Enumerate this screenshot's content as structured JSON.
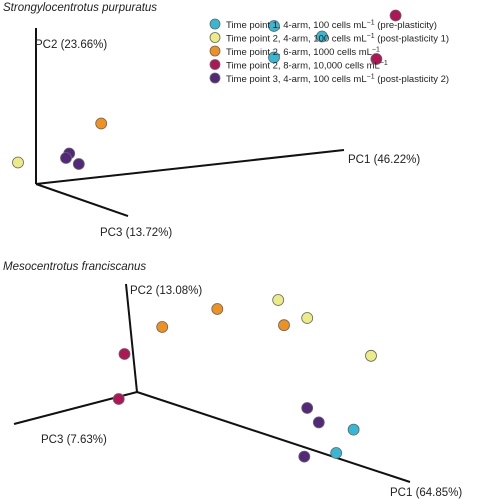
{
  "colors": {
    "tp1_4arm_100": "#35b8d4",
    "tp2_4arm_100": "#ecec86",
    "tp2_6arm_1000": "#f0901e",
    "tp2_8arm_10000": "#b01655",
    "tp3_4arm_100": "#53287a",
    "axis": "#111111",
    "marker_edge": "#666666"
  },
  "legend": {
    "placement": "top-right",
    "items": [
      {
        "key": "tp1_4arm_100",
        "text": "Time point 1, 4-arm, 100 cells mL",
        "sup": "−1",
        "suffix": " (pre-plasticity)"
      },
      {
        "key": "tp2_4arm_100",
        "text": "Time point 2, 4-arm, 100 cells mL",
        "sup": "−1",
        "suffix": " (post-plasticity 1)"
      },
      {
        "key": "tp2_6arm_1000",
        "text": "Time point 2, 6-arm, 1000 cells mL",
        "sup": "−1",
        "suffix": ""
      },
      {
        "key": "tp2_8arm_10000",
        "text": "Time point 2, 8-arm, 10,000 cells mL",
        "sup": "−1",
        "suffix": ""
      },
      {
        "key": "tp3_4arm_100",
        "text": "Time point 3, 4-arm, 100 cells mL",
        "sup": "−1",
        "suffix": " (post-plasticity 2)"
      }
    ]
  },
  "chart_data": [
    {
      "type": "scatter",
      "title": "Strongylocentrotus purpuratus",
      "axes": {
        "pc1": "PC1 (46.22%)",
        "pc2": "PC2 (23.66%)",
        "pc3": "PC3 (13.72%)"
      },
      "grid": false,
      "series": [
        {
          "key": "tp1_4arm_100",
          "points": [
            [
              0.7,
              1.0
            ],
            [
              0.85,
              0.93
            ],
            [
              0.7,
              0.79
            ]
          ]
        },
        {
          "key": "tp2_4arm_100",
          "points": [
            [
              -0.35,
              0.07
            ],
            [
              -0.24,
              0.09
            ],
            [
              -0.1,
              0.09
            ]
          ]
        },
        {
          "key": "tp2_6arm_1000",
          "points": [
            [
              0.16,
              0.35
            ],
            [
              -0.18,
              0.12
            ],
            [
              -0.22,
              0.04
            ]
          ]
        },
        {
          "key": "tp2_8arm_10000",
          "points": [
            [
              1.08,
              1.07
            ],
            [
              1.02,
              0.78
            ]
          ]
        },
        {
          "key": "tp3_4arm_100",
          "points": [
            [
              0.06,
              0.15
            ],
            [
              0.05,
              0.12
            ],
            [
              0.09,
              0.08
            ]
          ]
        }
      ]
    },
    {
      "type": "scatter",
      "title": "Mesocentrotus franciscanus",
      "axes": {
        "pc1": "PC1 (64.85%)",
        "pc2": "PC2 (13.08%)",
        "pc3": "PC3 (7.63%)"
      },
      "grid": false,
      "series": [
        {
          "key": "tp1_4arm_100",
          "points": [
            [
              0.84,
              0.28
            ],
            [
              0.78,
              0.15
            ]
          ]
        },
        {
          "key": "tp2_4arm_100",
          "points": [
            [
              0.58,
              1.0
            ],
            [
              0.68,
              0.9
            ],
            [
              0.9,
              0.69
            ]
          ]
        },
        {
          "key": "tp2_6arm_1000",
          "points": [
            [
              0.37,
              0.95
            ],
            [
              0.6,
              0.86
            ],
            [
              0.18,
              0.85
            ]
          ]
        },
        {
          "key": "tp2_8arm_10000",
          "points": [
            [
              0.05,
              0.7
            ],
            [
              0.03,
              0.45
            ]
          ]
        },
        {
          "key": "tp3_4arm_100",
          "points": [
            [
              0.68,
              0.4
            ],
            [
              0.72,
              0.32
            ],
            [
              0.67,
              0.13
            ]
          ]
        }
      ]
    }
  ]
}
